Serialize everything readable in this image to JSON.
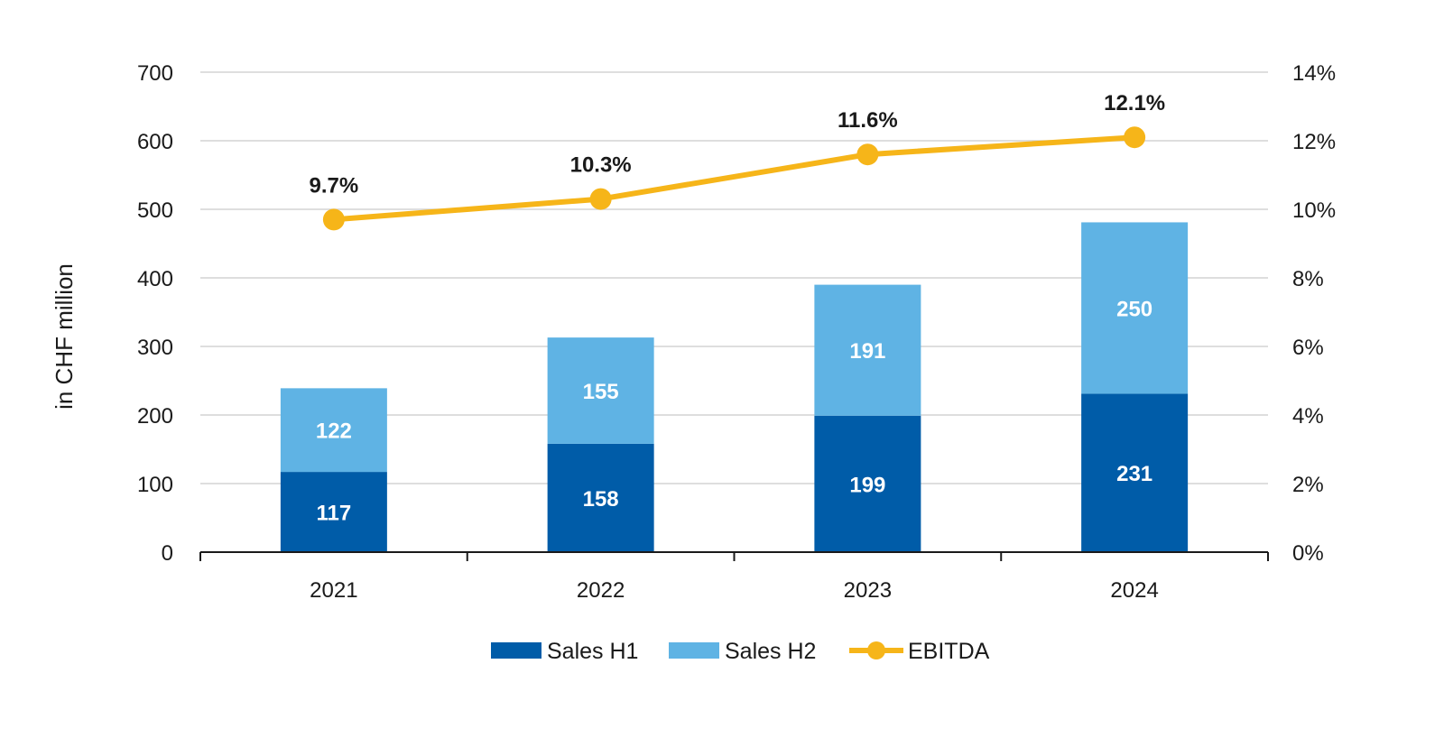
{
  "chart_data": {
    "type": "bar",
    "categories": [
      "2021",
      "2022",
      "2023",
      "2024"
    ],
    "ylabel": "in CHF million",
    "ylim": [
      0,
      700
    ],
    "y_ticks": [
      "0",
      "100",
      "200",
      "300",
      "400",
      "500",
      "600",
      "700"
    ],
    "y2lim": [
      0,
      14
    ],
    "y2_ticks": [
      "0%",
      "2%",
      "4%",
      "6%",
      "8%",
      "10%",
      "12%",
      "14%"
    ],
    "grid": true,
    "legend_position": "bottom",
    "series": [
      {
        "name": "Sales H1",
        "type": "bar",
        "stacked": true,
        "color": "#005ca8",
        "values": [
          117,
          158,
          199,
          231
        ],
        "labels": [
          "117",
          "158",
          "199",
          "231"
        ]
      },
      {
        "name": "Sales H2",
        "type": "bar",
        "stacked": true,
        "color": "#5fb3e4",
        "values": [
          122,
          155,
          191,
          250
        ],
        "labels": [
          "122",
          "155",
          "191",
          "250"
        ]
      },
      {
        "name": "EBITDA",
        "type": "line",
        "axis": "right",
        "color": "#f6b519",
        "values": [
          9.7,
          10.3,
          11.6,
          12.1
        ],
        "labels": [
          "9.7%",
          "10.3%",
          "11.6%",
          "12.1%"
        ]
      }
    ]
  }
}
